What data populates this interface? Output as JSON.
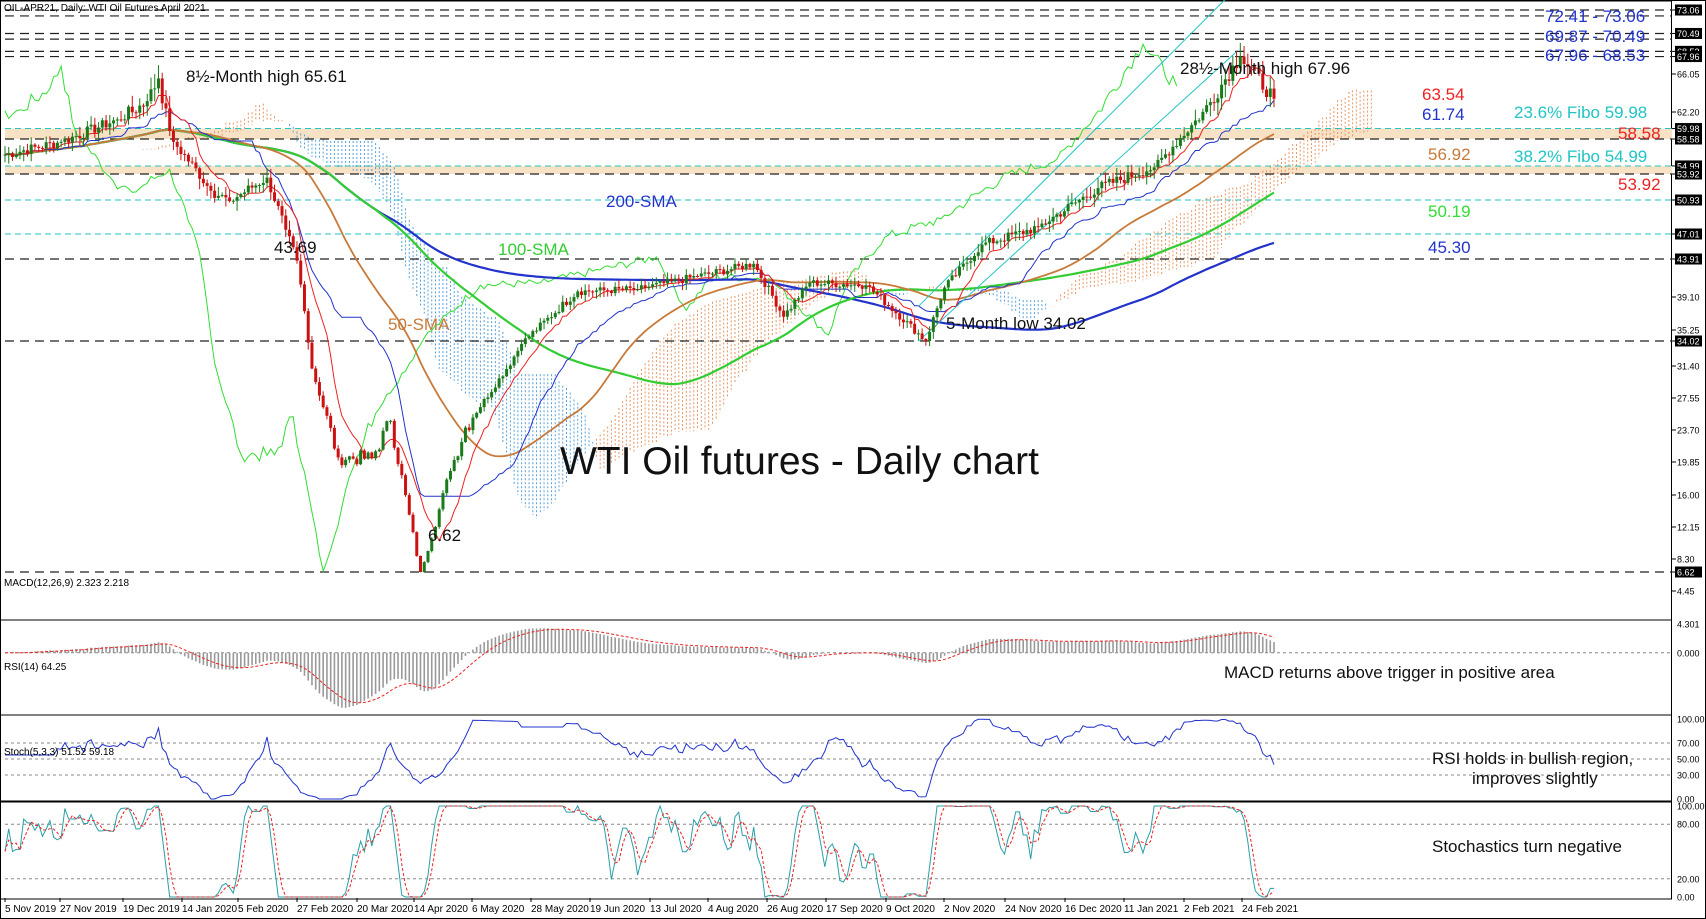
{
  "header": {
    "title": "OIL-APR21, Daily:  WTI Oil Futures April 2021"
  },
  "chart_data": {
    "type": "candlestick",
    "title": "WTI Oil futures - Daily chart",
    "main_price_scale": [
      "73.06",
      "70.49",
      "68.53",
      "67.96",
      "66.05",
      "62.20",
      "59.98",
      "58.58",
      "54.99",
      "53.92",
      "50.93",
      "47.01",
      "43.91",
      "39.10",
      "35.25",
      "34.02",
      "31.40",
      "27.55",
      "23.70",
      "19.85",
      "16.00",
      "12.15",
      "8.30",
      "6.62",
      "4.45"
    ],
    "date_axis": [
      "5 Nov 2019",
      "27 Nov 2019",
      "19 Dec 2019",
      "14 Jan 2020",
      "5 Feb 2020",
      "27 Feb 2020",
      "20 Mar 2020",
      "14 Apr 2020",
      "6 May 2020",
      "28 May 2020",
      "19 Jun 2020",
      "13 Jul 2020",
      "4 Aug 2020",
      "26 Aug 2020",
      "17 Sep 2020",
      "9 Oct 2020",
      "2 Nov 2020",
      "24 Nov 2020",
      "16 Dec 2020",
      "11 Jan 2021",
      "2 Feb 2021",
      "24 Feb 2021"
    ],
    "horizontal_levels": [
      73.06,
      72.41,
      70.49,
      69.87,
      68.53,
      67.96,
      59.98,
      58.58,
      54.99,
      53.92,
      50.93,
      47.01,
      43.91,
      34.02,
      6.62
    ],
    "close_path": [
      {
        "date": "5 Nov 2019",
        "close": 56.5
      },
      {
        "date": "27 Nov 2019",
        "close": 58.2
      },
      {
        "date": "19 Dec 2019",
        "close": 61.2
      },
      {
        "date": "2 Jan 2020",
        "close": 63.3
      },
      {
        "date": "7 Jan 2020",
        "close": 65.6
      },
      {
        "date": "14 Jan 2020",
        "close": 58.2
      },
      {
        "date": "28 Jan 2020",
        "close": 52.0
      },
      {
        "date": "5 Feb 2020",
        "close": 50.8
      },
      {
        "date": "20 Feb 2020",
        "close": 53.5
      },
      {
        "date": "27 Feb 2020",
        "close": 47.5
      },
      {
        "date": "3 Mar 2020",
        "close": 43.7
      },
      {
        "date": "9 Mar 2020",
        "close": 31.1
      },
      {
        "date": "18 Mar 2020",
        "close": 20.4
      },
      {
        "date": "31 Mar 2020",
        "close": 20.3
      },
      {
        "date": "8 Apr 2020",
        "close": 24.8
      },
      {
        "date": "20 Apr 2020",
        "close": 6.62
      },
      {
        "date": "30 Apr 2020",
        "close": 18.8
      },
      {
        "date": "6 May 2020",
        "close": 24.0
      },
      {
        "date": "28 May 2020",
        "close": 33.7
      },
      {
        "date": "19 Jun 2020",
        "close": 39.8
      },
      {
        "date": "13 Jul 2020",
        "close": 40.1
      },
      {
        "date": "4 Aug 2020",
        "close": 41.7
      },
      {
        "date": "26 Aug 2020",
        "close": 43.3
      },
      {
        "date": "8 Sep 2020",
        "close": 36.8
      },
      {
        "date": "17 Sep 2020",
        "close": 40.9
      },
      {
        "date": "9 Oct 2020",
        "close": 40.6
      },
      {
        "date": "2 Nov 2020",
        "close": 34.02
      },
      {
        "date": "9 Nov 2020",
        "close": 40.3
      },
      {
        "date": "24 Nov 2020",
        "close": 45.7
      },
      {
        "date": "16 Dec 2020",
        "close": 47.8
      },
      {
        "date": "11 Jan 2021",
        "close": 52.3
      },
      {
        "date": "2 Feb 2021",
        "close": 54.8
      },
      {
        "date": "24 Feb 2021",
        "close": 63.2
      },
      {
        "date": "8 Mar 2021",
        "close": 67.96
      },
      {
        "date": "latest",
        "close": 63.54
      }
    ],
    "moving_averages": {
      "sma50": {
        "label": "50-SMA",
        "last": 56.92,
        "color": "#c87a3a"
      },
      "sma100": {
        "label": "100-SMA",
        "last": 50.19,
        "color": "#33cc33"
      },
      "sma200": {
        "label": "200-SMA",
        "last": 45.3,
        "color": "#2233cc"
      },
      "tenkan": {
        "last": 63.54,
        "color": "#ee2222"
      },
      "kijun": {
        "last": 61.74,
        "color": "#2233cc"
      }
    },
    "indicators": {
      "macd": {
        "label": "MACD(12,26,9) 2.323 2.218",
        "scale": [
          "4.301",
          "0.000"
        ],
        "note": "MACD returns above trigger in positive area"
      },
      "rsi": {
        "label": "RSI(14) 64.25",
        "scale": [
          "100.00",
          "70.00",
          "50.00",
          "30.00",
          "0.00"
        ],
        "note1": "RSI holds in bullish region,",
        "note2": "improves slightly"
      },
      "stoch": {
        "label": "Stoch(5,3,3) 51.52 59.18",
        "scale": [
          "100.00",
          "80.00",
          "20.00",
          "0.00"
        ],
        "note": "Stochastics turn negative"
      }
    }
  },
  "annotations": {
    "chart_title": "WTI Oil futures - Daily chart",
    "high_2019": "8½-Month high 65.61",
    "high_2021": "28½-Month high 67.96",
    "low_5m": "5-Month low 34.02",
    "low_4369": "43.69",
    "low_662": "6.62",
    "sma200": "200-SMA",
    "sma100": "100-SMA",
    "sma50": "50-SMA",
    "right_7241": "72.41 - 73.06",
    "right_6987": "69.87 - 70.49",
    "right_6796": "67.96 - 68.53",
    "val_6354": "63.54",
    "val_6174": "61.74",
    "fibo_236": "23.6% Fibo 59.98",
    "val_5858": "58.58",
    "val_5692": "56.92",
    "fibo_382": "38.2% Fibo 54.99",
    "val_5392": "53.92",
    "val_5019": "50.19",
    "val_4530": "45.30"
  },
  "colors": {
    "price_up": "#1a7a1a",
    "price_down": "#cc1111",
    "tenkan": "#ee2222",
    "kijun": "#2233cc",
    "chikou": "#33dd33",
    "cloud_blue": "#3a8fd6",
    "cloud_orange": "#e5834a",
    "zone_fill": "#f7e2c6",
    "cyan_line": "#22c4c4",
    "label_blue": "#2233cc",
    "label_red": "#ee2222",
    "label_cyan": "#22c4c4",
    "label_green": "#33dd33",
    "label_orange": "#c87a3a"
  }
}
